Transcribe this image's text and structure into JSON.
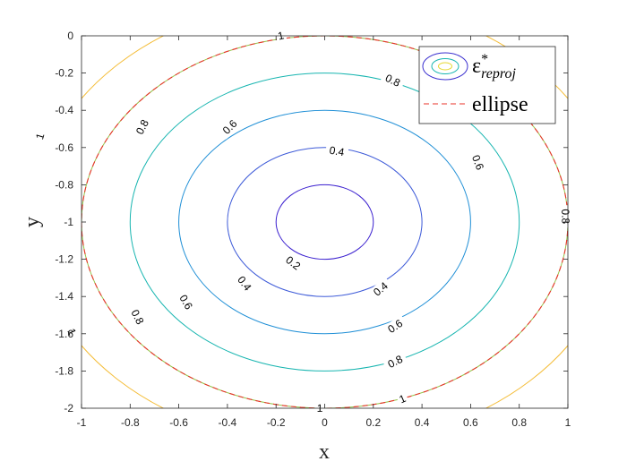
{
  "chart_data": {
    "type": "contour",
    "xlabel": "x",
    "ylabel": "y",
    "xlim": [
      -1,
      1
    ],
    "ylim": [
      -2,
      0
    ],
    "x_ticks": [
      -1,
      -0.8,
      -0.6,
      -0.4,
      -0.2,
      0,
      0.2,
      0.4,
      0.6,
      0.8,
      1
    ],
    "y_ticks": [
      -2,
      -1.8,
      -1.6,
      -1.4,
      -1.2,
      -1,
      -0.8,
      -0.6,
      -0.4,
      -0.2,
      0
    ],
    "x_tick_labels": [
      "-1",
      "-0.8",
      "-0.6",
      "-0.4",
      "-0.2",
      "0",
      "0.2",
      "0.4",
      "0.6",
      "0.8",
      "1"
    ],
    "y_tick_labels": [
      "-2",
      "-1.8",
      "-1.6",
      "-1.4",
      "-1.2",
      "-1",
      "-0.8",
      "-0.6",
      "-0.4",
      "-0.2",
      "0"
    ],
    "grid": false,
    "center": [
      0,
      -1
    ],
    "series": [
      {
        "name": "ε*_reproj",
        "kind": "contour",
        "levels": [
          {
            "level": 0.2,
            "color": "#3a1fcf"
          },
          {
            "level": 0.4,
            "color": "#3d5ad8"
          },
          {
            "level": 0.6,
            "color": "#1f8fd6"
          },
          {
            "level": 0.8,
            "color": "#17b5b0"
          },
          {
            "level": 1.0,
            "color": "#94c44a"
          },
          {
            "level": 1.2,
            "color": "#f4bd39"
          }
        ],
        "contour_labels": [
          {
            "text": "0.2",
            "x": -0.13,
            "y": -1.22
          },
          {
            "text": "0.4",
            "x": 0.05,
            "y": -0.62
          },
          {
            "text": "0.4",
            "x": -0.33,
            "y": -1.33
          },
          {
            "text": "0.4",
            "x": 0.23,
            "y": -1.36
          },
          {
            "text": "0.6",
            "x": -0.39,
            "y": -0.49
          },
          {
            "text": "0.6",
            "x": 0.63,
            "y": -0.68
          },
          {
            "text": "0.6",
            "x": -0.57,
            "y": -1.43
          },
          {
            "text": "0.6",
            "x": 0.29,
            "y": -1.56
          },
          {
            "text": "0.8",
            "x": 0.28,
            "y": -0.24
          },
          {
            "text": "0.8",
            "x": -0.75,
            "y": -0.49
          },
          {
            "text": "0.8",
            "x": 0.99,
            "y": -0.97
          },
          {
            "text": "0.8",
            "x": -0.77,
            "y": -1.51
          },
          {
            "text": "0.8",
            "x": 0.29,
            "y": -1.75
          },
          {
            "text": "1",
            "x": -0.18,
            "y": 0.0
          },
          {
            "text": "1",
            "x": -1.17,
            "y": -0.54
          },
          {
            "text": "1",
            "x": 1.31,
            "y": -1.35
          },
          {
            "text": "1",
            "x": -1.04,
            "y": -1.59
          },
          {
            "text": "1",
            "x": -0.02,
            "y": -2.0
          },
          {
            "text": "1",
            "x": 0.32,
            "y": -1.95
          }
        ]
      },
      {
        "name": "ellipse",
        "kind": "line",
        "color": "#e8332a",
        "style": "dashed",
        "center": [
          0,
          -1
        ],
        "semi_axes": [
          1,
          1
        ]
      }
    ],
    "legend": {
      "placement": "top-right",
      "entries": [
        "ε*_reproj",
        "ellipse"
      ],
      "display": [
        {
          "main": "ε",
          "sup": "*",
          "sub": "reproj"
        },
        {
          "main": "ellipse"
        }
      ]
    }
  }
}
